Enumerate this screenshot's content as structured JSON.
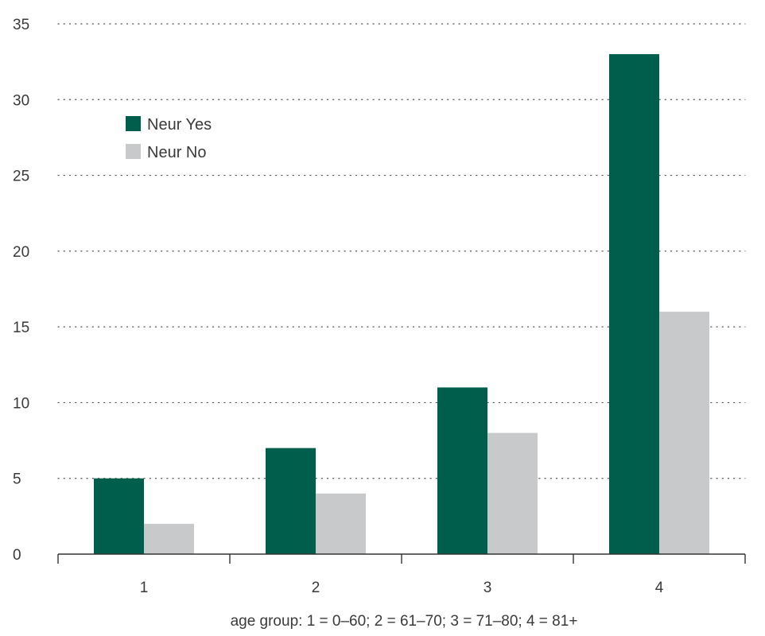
{
  "chart_data": {
    "type": "bar",
    "title": "",
    "xlabel": "age group: 1 = 0–60; 2 = 61–70; 3 = 71–80; 4 = 81+",
    "ylabel": "",
    "categories": [
      "1",
      "2",
      "3",
      "4"
    ],
    "series": [
      {
        "name": "Neur Yes",
        "values": [
          5,
          7,
          11,
          33
        ],
        "color": "#005e4c"
      },
      {
        "name": "Neur No",
        "values": [
          2,
          4,
          8,
          16
        ],
        "color": "#c8c9cb"
      }
    ],
    "ylim": [
      0,
      35
    ],
    "yticks": [
      0,
      5,
      10,
      15,
      20,
      25,
      30,
      35
    ],
    "ytick_labels": [
      "0",
      "5",
      "10",
      "15",
      "20",
      "25",
      "30",
      "35"
    ],
    "grid": "horizontal dotted",
    "legend_position": "top-left"
  }
}
